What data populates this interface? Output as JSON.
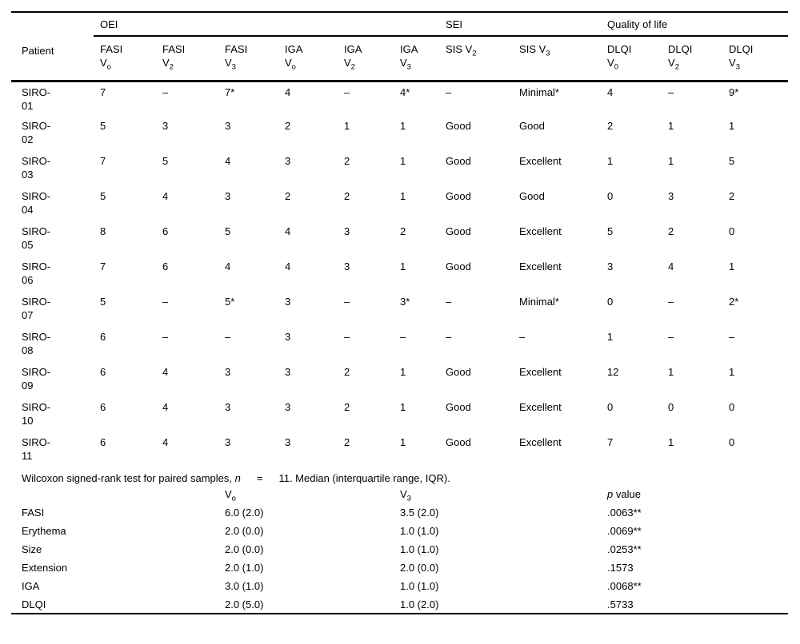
{
  "colors": {
    "text": "#000000",
    "rule": "#000000",
    "background": "#ffffff"
  },
  "table": {
    "patient_header": "Patient",
    "groups": [
      {
        "label": "OEI"
      },
      {
        "label": "SEI"
      },
      {
        "label": "Quality of life"
      }
    ],
    "columns": [
      {
        "name": "FASI",
        "v": "V",
        "sub": "o"
      },
      {
        "name": "FASI",
        "v": "V",
        "sub": "2"
      },
      {
        "name": "FASI",
        "v": "V",
        "sub": "3"
      },
      {
        "name": "IGA",
        "v": "V",
        "sub": "o"
      },
      {
        "name": "IGA",
        "v": "V",
        "sub": "2"
      },
      {
        "name": "IGA",
        "v": "V",
        "sub": "3"
      },
      {
        "name": "SIS",
        "v": "V",
        "sub": "2"
      },
      {
        "name": "SIS",
        "v": "V",
        "sub": "3"
      },
      {
        "name": "DLQI",
        "v": "V",
        "sub": "0"
      },
      {
        "name": "DLQI",
        "v": "V",
        "sub": "2"
      },
      {
        "name": "DLQI",
        "v": "V",
        "sub": "3"
      }
    ],
    "rows": [
      {
        "patient": "SIRO-01",
        "cells": [
          "7",
          "–",
          "7*",
          "4",
          "–",
          "4*",
          "–",
          "Minimal*",
          "4",
          "–",
          "9*"
        ]
      },
      {
        "patient": "SIRO-02",
        "cells": [
          "5",
          "3",
          "3",
          "2",
          "1",
          "1",
          "Good",
          "Good",
          "2",
          "1",
          "1"
        ]
      },
      {
        "patient": "SIRO-03",
        "cells": [
          "7",
          "5",
          "4",
          "3",
          "2",
          "1",
          "Good",
          "Excellent",
          "1",
          "1",
          "5"
        ]
      },
      {
        "patient": "SIRO-04",
        "cells": [
          "5",
          "4",
          "3",
          "2",
          "2",
          "1",
          "Good",
          "Good",
          "0",
          "3",
          "2"
        ]
      },
      {
        "patient": "SIRO-05",
        "cells": [
          "8",
          "6",
          "5",
          "4",
          "3",
          "2",
          "Good",
          "Excellent",
          "5",
          "2",
          "0"
        ]
      },
      {
        "patient": "SIRO-06",
        "cells": [
          "7",
          "6",
          "4",
          "4",
          "3",
          "1",
          "Good",
          "Excellent",
          "3",
          "4",
          "1"
        ]
      },
      {
        "patient": "SIRO-07",
        "cells": [
          "5",
          "–",
          "5*",
          "3",
          "–",
          "3*",
          "–",
          "Minimal*",
          "0",
          "–",
          "2*"
        ]
      },
      {
        "patient": "SIRO-08",
        "cells": [
          "6",
          "–",
          "–",
          "3",
          "–",
          "–",
          "–",
          "–",
          "1",
          "–",
          "–"
        ]
      },
      {
        "patient": "SIRO-09",
        "cells": [
          "6",
          "4",
          "3",
          "3",
          "2",
          "1",
          "Good",
          "Excellent",
          "12",
          "1",
          "1"
        ]
      },
      {
        "patient": "SIRO-10",
        "cells": [
          "6",
          "4",
          "3",
          "3",
          "2",
          "1",
          "Good",
          "Excellent",
          "0",
          "0",
          "0"
        ]
      },
      {
        "patient": "SIRO-11",
        "cells": [
          "6",
          "4",
          "3",
          "3",
          "2",
          "1",
          "Good",
          "Excellent",
          "7",
          "1",
          "0"
        ]
      }
    ]
  },
  "footer": {
    "note": {
      "pre": "Wilcoxon signed-rank test for paired samples, ",
      "var": "n",
      "eq": "=",
      "post": "11. Median (interquartile range, IQR)."
    },
    "subheader": {
      "v0": {
        "v": "V",
        "sub": "o"
      },
      "v3": {
        "v": "V",
        "sub": "3"
      },
      "p": {
        "var": "p",
        "label": " value"
      }
    },
    "stats": [
      {
        "label": "FASI",
        "v0": "6.0 (2.0)",
        "v3": "3.5 (2.0)",
        "p": ".0063**"
      },
      {
        "label": "Erythema",
        "v0": "2.0 (0.0)",
        "v3": "1.0 (1.0)",
        "p": ".0069**"
      },
      {
        "label": "Size",
        "v0": "2.0 (0.0)",
        "v3": "1.0 (1.0)",
        "p": ".0253**"
      },
      {
        "label": "Extension",
        "v0": "2.0 (1.0)",
        "v3": "2.0 (0.0)",
        "p": ".1573"
      },
      {
        "label": "IGA",
        "v0": "3.0 (1.0)",
        "v3": "1.0 (1.0)",
        "p": ".0068**"
      },
      {
        "label": "DLQI",
        "v0": "2.0 (5.0)",
        "v3": "1.0 (2.0)",
        "p": ".5733"
      }
    ]
  }
}
